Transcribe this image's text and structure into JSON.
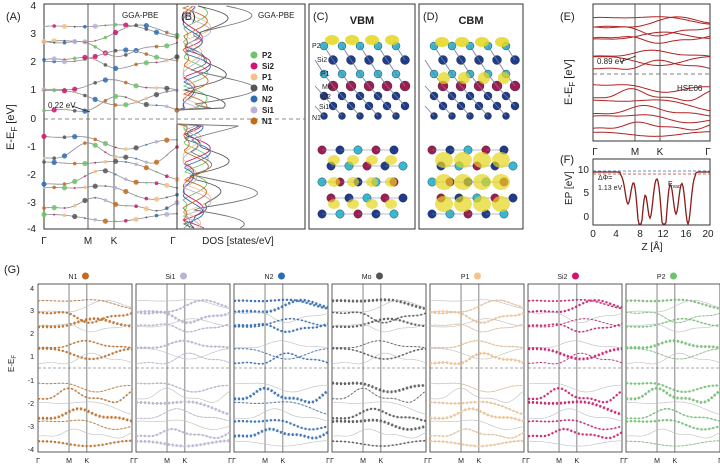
{
  "panels": {
    "A": {
      "tag": "(A)",
      "method": "GGA-PBE",
      "gap": "0.22 eV",
      "ylabel": "E-E",
      "ylabel_sub": "F",
      "yunit": " [eV]",
      "yticks": [
        "4",
        "3",
        "2",
        "1",
        "0",
        "-1",
        "-2",
        "-3",
        "-4"
      ],
      "kpoints": [
        "Γ",
        "M",
        "K",
        "Γ"
      ]
    },
    "B": {
      "tag": "(B)",
      "method": "GGA-PBE",
      "xlabel": "DOS [states/eV]",
      "legend": [
        {
          "name": "P2",
          "color": "#6cc36c"
        },
        {
          "name": "Si2",
          "color": "#d01470"
        },
        {
          "name": "P1",
          "color": "#f5c28a"
        },
        {
          "name": "Mo",
          "color": "#555555"
        },
        {
          "name": "N2",
          "color": "#2a6db5"
        },
        {
          "name": "Si1",
          "color": "#b9b3d6"
        },
        {
          "name": "N1",
          "color": "#c46a1c"
        }
      ]
    },
    "C": {
      "tag": "(C)",
      "title": "VBM",
      "atoms": [
        "P2",
        "Si2",
        "P1",
        "Mo",
        "N2",
        "Si1",
        "N1"
      ]
    },
    "D": {
      "tag": "(D)",
      "title": "CBM"
    },
    "E": {
      "tag": "(E)",
      "method": "HSE06",
      "gap": "0.89 eV",
      "ylabel": "E-E",
      "ylabel_sub": "F",
      "yunit": " [eV]",
      "yticks": [
        "4",
        "3",
        "2",
        "1",
        "0",
        "-1",
        "-2",
        "-3",
        "-4"
      ],
      "kpoints": [
        "Γ",
        "M",
        "K",
        "Γ"
      ]
    },
    "F": {
      "tag": "(F)",
      "ylabel": "EP [eV]",
      "xlabel": "Z [Å]",
      "yticks": [
        "10",
        "5",
        "0"
      ],
      "xticks": [
        "0",
        "4",
        "8",
        "12",
        "16",
        "20"
      ],
      "delta": "ΔΦ=",
      "delta_val": "1.13  eV",
      "evac": "E",
      "evac_sub": "vac"
    },
    "G": {
      "tag": "(G)",
      "ylabel": "E-E",
      "ylabel_sub": "F",
      "yticks": [
        "4",
        "3",
        "2",
        "1",
        "0",
        "-1",
        "-2",
        "-3",
        "-4"
      ],
      "kpoints": [
        "Γ",
        "M",
        "K",
        "Γ"
      ],
      "projections": [
        {
          "name": "N1",
          "color": "#c46a1c"
        },
        {
          "name": "Si1",
          "color": "#b9b3d6"
        },
        {
          "name": "N2",
          "color": "#2a6db5"
        },
        {
          "name": "Mo",
          "color": "#555555"
        },
        {
          "name": "P1",
          "color": "#f5c28a"
        },
        {
          "name": "Si2",
          "color": "#d01470"
        },
        {
          "name": "P2",
          "color": "#6cc36c"
        }
      ]
    }
  }
}
